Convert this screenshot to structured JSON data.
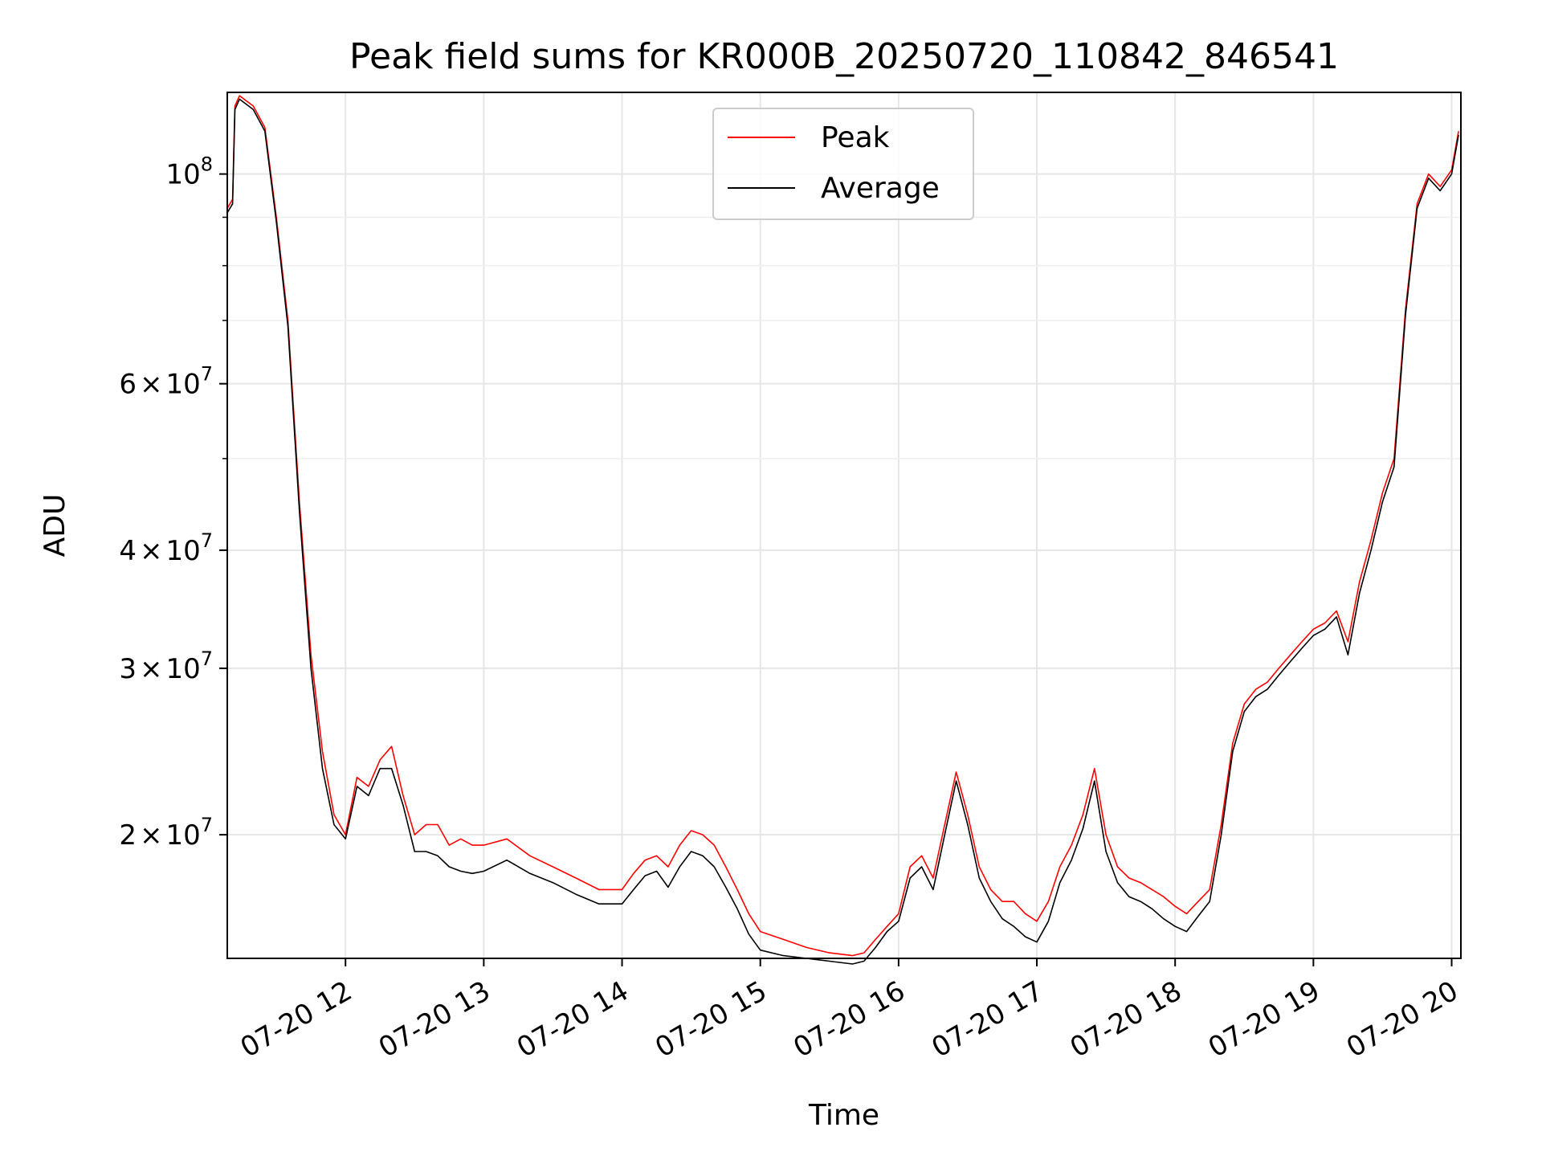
{
  "chart_data": {
    "type": "line",
    "title": "Peak field sums for KR000B_20250720_110842_846541",
    "xlabel": "Time",
    "ylabel": "ADU",
    "x_axis": {
      "type": "time",
      "min": "2025-07-20T11:08:42",
      "max": "2025-07-20T20:04:00",
      "ticks": [
        {
          "value": "2025-07-20T12:00",
          "label": "07-20 12"
        },
        {
          "value": "2025-07-20T13:00",
          "label": "07-20 13"
        },
        {
          "value": "2025-07-20T14:00",
          "label": "07-20 14"
        },
        {
          "value": "2025-07-20T15:00",
          "label": "07-20 15"
        },
        {
          "value": "2025-07-20T16:00",
          "label": "07-20 16"
        },
        {
          "value": "2025-07-20T17:00",
          "label": "07-20 17"
        },
        {
          "value": "2025-07-20T18:00",
          "label": "07-20 18"
        },
        {
          "value": "2025-07-20T19:00",
          "label": "07-20 19"
        },
        {
          "value": "2025-07-20T20:00",
          "label": "07-20 20"
        }
      ]
    },
    "y_axis": {
      "scale": "log",
      "min": 14800000,
      "max": 122000000,
      "major_ticks": [
        {
          "value": 100000000,
          "mantissa": "",
          "exponent": "8"
        },
        {
          "value": 60000000,
          "mantissa": "6",
          "exponent": "7"
        },
        {
          "value": 40000000,
          "mantissa": "4",
          "exponent": "7"
        },
        {
          "value": 30000000,
          "mantissa": "3",
          "exponent": "7"
        },
        {
          "value": 20000000,
          "mantissa": "2",
          "exponent": "7"
        }
      ],
      "minor_ticks": [
        90000000,
        80000000,
        70000000,
        50000000
      ]
    },
    "grid": true,
    "legend": {
      "placement": "upper center",
      "entries": [
        {
          "label": "Peak",
          "color": "#ff0000"
        },
        {
          "label": "Average",
          "color": "#000000"
        }
      ]
    },
    "series": [
      {
        "name": "Peak",
        "color": "#ff0000",
        "x": [
          "2025-07-20T11:08:42",
          "2025-07-20T11:11",
          "2025-07-20T11:12",
          "2025-07-20T11:14",
          "2025-07-20T11:20",
          "2025-07-20T11:25",
          "2025-07-20T11:30",
          "2025-07-20T11:35",
          "2025-07-20T11:40",
          "2025-07-20T11:45",
          "2025-07-20T11:50",
          "2025-07-20T11:55",
          "2025-07-20T12:00",
          "2025-07-20T12:05",
          "2025-07-20T12:10",
          "2025-07-20T12:15",
          "2025-07-20T12:20",
          "2025-07-20T12:25",
          "2025-07-20T12:30",
          "2025-07-20T12:35",
          "2025-07-20T12:40",
          "2025-07-20T12:45",
          "2025-07-20T12:50",
          "2025-07-20T12:55",
          "2025-07-20T13:00",
          "2025-07-20T13:10",
          "2025-07-20T13:20",
          "2025-07-20T13:30",
          "2025-07-20T13:40",
          "2025-07-20T13:50",
          "2025-07-20T14:00",
          "2025-07-20T14:05",
          "2025-07-20T14:10",
          "2025-07-20T14:15",
          "2025-07-20T14:20",
          "2025-07-20T14:25",
          "2025-07-20T14:30",
          "2025-07-20T14:35",
          "2025-07-20T14:40",
          "2025-07-20T14:45",
          "2025-07-20T14:50",
          "2025-07-20T14:55",
          "2025-07-20T15:00",
          "2025-07-20T15:10",
          "2025-07-20T15:20",
          "2025-07-20T15:30",
          "2025-07-20T15:40",
          "2025-07-20T15:45",
          "2025-07-20T15:50",
          "2025-07-20T15:55",
          "2025-07-20T16:00",
          "2025-07-20T16:05",
          "2025-07-20T16:10",
          "2025-07-20T16:15",
          "2025-07-20T16:20",
          "2025-07-20T16:25",
          "2025-07-20T16:30",
          "2025-07-20T16:35",
          "2025-07-20T16:40",
          "2025-07-20T16:45",
          "2025-07-20T16:50",
          "2025-07-20T16:55",
          "2025-07-20T17:00",
          "2025-07-20T17:05",
          "2025-07-20T17:10",
          "2025-07-20T17:15",
          "2025-07-20T17:20",
          "2025-07-20T17:25",
          "2025-07-20T17:30",
          "2025-07-20T17:35",
          "2025-07-20T17:40",
          "2025-07-20T17:45",
          "2025-07-20T17:50",
          "2025-07-20T17:55",
          "2025-07-20T18:00",
          "2025-07-20T18:05",
          "2025-07-20T18:10",
          "2025-07-20T18:15",
          "2025-07-20T18:20",
          "2025-07-20T18:25",
          "2025-07-20T18:30",
          "2025-07-20T18:35",
          "2025-07-20T18:40",
          "2025-07-20T18:45",
          "2025-07-20T18:50",
          "2025-07-20T18:55",
          "2025-07-20T19:00",
          "2025-07-20T19:05",
          "2025-07-20T19:10",
          "2025-07-20T19:15",
          "2025-07-20T19:20",
          "2025-07-20T19:25",
          "2025-07-20T19:30",
          "2025-07-20T19:35",
          "2025-07-20T19:40",
          "2025-07-20T19:45",
          "2025-07-20T19:50",
          "2025-07-20T19:55",
          "2025-07-20T20:00",
          "2025-07-20T20:03"
        ],
        "y": [
          92000000,
          94000000,
          118000000,
          121000000,
          118000000,
          112000000,
          90000000,
          70000000,
          45000000,
          31000000,
          24500000,
          21000000,
          20000000,
          23000000,
          22500000,
          24000000,
          24800000,
          22000000,
          20000000,
          20500000,
          20500000,
          19500000,
          19800000,
          19500000,
          19500000,
          19800000,
          19000000,
          18500000,
          18000000,
          17500000,
          17500000,
          18200000,
          18800000,
          19000000,
          18500000,
          19500000,
          20200000,
          20000000,
          19500000,
          18500000,
          17500000,
          16500000,
          15800000,
          15500000,
          15200000,
          15000000,
          14900000,
          15000000,
          15500000,
          16000000,
          16500000,
          18500000,
          19000000,
          18000000,
          20500000,
          23300000,
          21000000,
          18500000,
          17500000,
          17000000,
          17000000,
          16500000,
          16200000,
          17000000,
          18500000,
          19500000,
          21000000,
          23500000,
          20000000,
          18500000,
          18000000,
          17800000,
          17500000,
          17200000,
          16800000,
          16500000,
          17000000,
          17500000,
          20500000,
          25000000,
          27500000,
          28500000,
          29000000,
          30000000,
          31000000,
          32000000,
          33000000,
          33500000,
          34500000,
          32000000,
          37000000,
          41000000,
          46000000,
          50000000,
          72000000,
          93000000,
          100000000,
          97000000,
          101000000,
          111000000
        ]
      },
      {
        "name": "Average",
        "color": "#000000",
        "x": [
          "2025-07-20T11:08:42",
          "2025-07-20T11:11",
          "2025-07-20T11:12",
          "2025-07-20T11:14",
          "2025-07-20T11:20",
          "2025-07-20T11:25",
          "2025-07-20T11:30",
          "2025-07-20T11:35",
          "2025-07-20T11:40",
          "2025-07-20T11:45",
          "2025-07-20T11:50",
          "2025-07-20T11:55",
          "2025-07-20T12:00",
          "2025-07-20T12:05",
          "2025-07-20T12:10",
          "2025-07-20T12:15",
          "2025-07-20T12:20",
          "2025-07-20T12:25",
          "2025-07-20T12:30",
          "2025-07-20T12:35",
          "2025-07-20T12:40",
          "2025-07-20T12:45",
          "2025-07-20T12:50",
          "2025-07-20T12:55",
          "2025-07-20T13:00",
          "2025-07-20T13:10",
          "2025-07-20T13:20",
          "2025-07-20T13:30",
          "2025-07-20T13:40",
          "2025-07-20T13:50",
          "2025-07-20T14:00",
          "2025-07-20T14:05",
          "2025-07-20T14:10",
          "2025-07-20T14:15",
          "2025-07-20T14:20",
          "2025-07-20T14:25",
          "2025-07-20T14:30",
          "2025-07-20T14:35",
          "2025-07-20T14:40",
          "2025-07-20T14:45",
          "2025-07-20T14:50",
          "2025-07-20T14:55",
          "2025-07-20T15:00",
          "2025-07-20T15:10",
          "2025-07-20T15:20",
          "2025-07-20T15:30",
          "2025-07-20T15:40",
          "2025-07-20T15:45",
          "2025-07-20T15:50",
          "2025-07-20T15:55",
          "2025-07-20T16:00",
          "2025-07-20T16:05",
          "2025-07-20T16:10",
          "2025-07-20T16:15",
          "2025-07-20T16:20",
          "2025-07-20T16:25",
          "2025-07-20T16:30",
          "2025-07-20T16:35",
          "2025-07-20T16:40",
          "2025-07-20T16:45",
          "2025-07-20T16:50",
          "2025-07-20T16:55",
          "2025-07-20T17:00",
          "2025-07-20T17:05",
          "2025-07-20T17:10",
          "2025-07-20T17:15",
          "2025-07-20T17:20",
          "2025-07-20T17:25",
          "2025-07-20T17:30",
          "2025-07-20T17:35",
          "2025-07-20T17:40",
          "2025-07-20T17:45",
          "2025-07-20T17:50",
          "2025-07-20T17:55",
          "2025-07-20T18:00",
          "2025-07-20T18:05",
          "2025-07-20T18:10",
          "2025-07-20T18:15",
          "2025-07-20T18:20",
          "2025-07-20T18:25",
          "2025-07-20T18:30",
          "2025-07-20T18:35",
          "2025-07-20T18:40",
          "2025-07-20T18:45",
          "2025-07-20T18:50",
          "2025-07-20T18:55",
          "2025-07-20T19:00",
          "2025-07-20T19:05",
          "2025-07-20T19:10",
          "2025-07-20T19:15",
          "2025-07-20T19:20",
          "2025-07-20T19:25",
          "2025-07-20T19:30",
          "2025-07-20T19:35",
          "2025-07-20T19:40",
          "2025-07-20T19:45",
          "2025-07-20T19:50",
          "2025-07-20T19:55",
          "2025-07-20T20:00",
          "2025-07-20T20:03"
        ],
        "y": [
          91000000,
          93000000,
          117000000,
          120000000,
          117000000,
          111000000,
          89000000,
          69000000,
          44000000,
          30000000,
          23500000,
          20500000,
          19800000,
          22500000,
          22000000,
          23500000,
          23500000,
          21500000,
          19200000,
          19200000,
          19000000,
          18500000,
          18300000,
          18200000,
          18300000,
          18800000,
          18200000,
          17800000,
          17300000,
          16900000,
          16900000,
          17500000,
          18100000,
          18300000,
          17600000,
          18500000,
          19200000,
          19000000,
          18500000,
          17600000,
          16700000,
          15700000,
          15100000,
          14900000,
          14800000,
          14700000,
          14600000,
          14700000,
          15200000,
          15800000,
          16200000,
          18000000,
          18500000,
          17500000,
          20000000,
          22800000,
          20500000,
          18000000,
          17000000,
          16300000,
          16000000,
          15600000,
          15400000,
          16200000,
          17800000,
          18800000,
          20300000,
          22800000,
          19200000,
          17800000,
          17200000,
          17000000,
          16700000,
          16300000,
          16000000,
          15800000,
          16400000,
          17000000,
          20000000,
          24500000,
          27000000,
          28000000,
          28500000,
          29500000,
          30500000,
          31500000,
          32500000,
          33000000,
          34000000,
          31000000,
          36000000,
          40000000,
          45000000,
          49000000,
          71000000,
          92000000,
          99000000,
          96000000,
          100000000,
          110000000
        ]
      }
    ]
  }
}
